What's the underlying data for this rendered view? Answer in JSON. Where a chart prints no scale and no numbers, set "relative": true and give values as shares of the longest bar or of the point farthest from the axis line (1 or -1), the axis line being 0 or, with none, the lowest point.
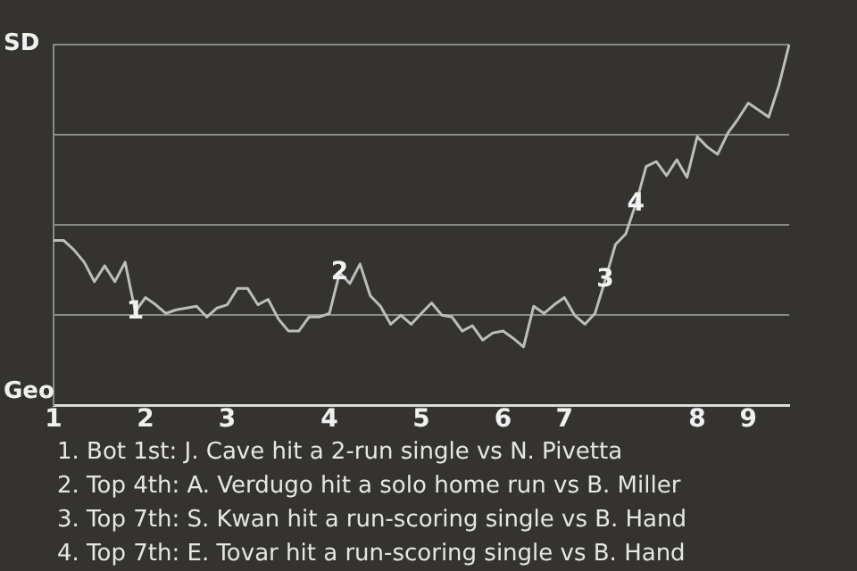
{
  "chart_data": {
    "type": "line",
    "categories": [
      "1",
      null,
      null,
      null,
      null,
      null,
      null,
      null,
      null,
      "2",
      null,
      null,
      null,
      null,
      null,
      null,
      null,
      "3",
      null,
      null,
      null,
      null,
      null,
      null,
      null,
      null,
      null,
      "4",
      null,
      null,
      null,
      null,
      null,
      null,
      null,
      null,
      "5",
      null,
      null,
      null,
      null,
      null,
      null,
      null,
      "6",
      null,
      null,
      null,
      null,
      null,
      "7",
      null,
      null,
      null,
      null,
      null,
      null,
      null,
      null,
      null,
      null,
      null,
      null,
      "8",
      null,
      null,
      null,
      null,
      "9",
      null,
      null,
      null,
      null
    ],
    "series": [
      {
        "color": "#bdbdbd",
        "values": [
          0.457,
          0.457,
          0.431,
          0.397,
          0.343,
          0.387,
          0.343,
          0.397,
          0.26,
          0.299,
          0.279,
          0.255,
          0.265,
          0.27,
          0.275,
          0.245,
          0.27,
          0.279,
          0.324,
          0.324,
          0.279,
          0.294,
          0.24,
          0.206,
          0.206,
          0.245,
          0.245,
          0.255,
          0.368,
          0.338,
          0.392,
          0.304,
          0.275,
          0.225,
          0.25,
          0.225,
          0.255,
          0.284,
          0.25,
          0.245,
          0.206,
          0.221,
          0.181,
          0.201,
          0.206,
          0.186,
          0.162,
          0.275,
          0.255,
          0.279,
          0.299,
          0.25,
          0.225,
          0.255,
          0.348,
          0.446,
          0.475,
          0.559,
          0.662,
          0.676,
          0.637,
          0.681,
          0.632,
          0.745,
          0.716,
          0.696,
          0.755,
          0.794,
          0.838,
          0.819,
          0.799,
          0.887,
          1
        ]
      }
    ],
    "relative": true,
    "grid": "y",
    "marker": "none",
    "line_style": "solid",
    "annotations": [
      "SD",
      "Geo",
      {
        "text": "1",
        "y": 0.26
      },
      {
        "text": "2",
        "y": 0.368
      },
      {
        "text": "3",
        "y": 0.348
      },
      {
        "text": "4",
        "y": 0.559
      },
      "1. Bot 1st: J. Cave hit a 2-run single vs N. Pivetta",
      "2. Top 4th: A. Verdugo hit a solo home run vs B. Miller",
      "3. Top 7th: S. Kwan hit a run-scoring single vs B. Hand",
      "4. Top 7th: E. Tovar hit a run-scoring single vs B. Hand"
    ]
  }
}
